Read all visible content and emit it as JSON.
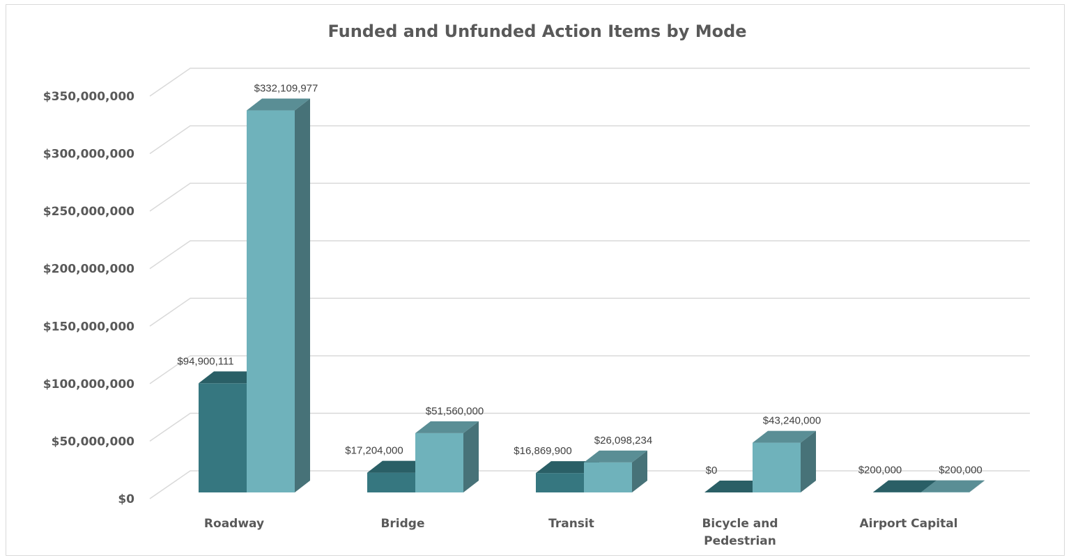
{
  "chart_data": {
    "type": "bar",
    "title": "Funded and Unfunded Action Items by Mode",
    "xlabel": "",
    "ylabel": "",
    "ylim": [
      0,
      350000000
    ],
    "y_ticks": [
      0,
      50000000,
      100000000,
      150000000,
      200000000,
      250000000,
      300000000,
      350000000
    ],
    "y_tick_labels": [
      "$0",
      "$50,000,000",
      "$100,000,000",
      "$150,000,000",
      "$200,000,000",
      "$250,000,000",
      "$300,000,000",
      "$350,000,000"
    ],
    "categories": [
      "Roadway",
      "Bridge",
      "Transit",
      "Bicycle and Pedestrian",
      "Airport Capital"
    ],
    "series": [
      {
        "values": [
          94900111,
          17204000,
          16869900,
          0,
          200000
        ],
        "labels": [
          "$94,900,111",
          "$17,204,000",
          "$16,869,900",
          "$0",
          "$200,000"
        ],
        "color": "#367780",
        "side_color": "#255d65",
        "top_color": "#2a5f66"
      },
      {
        "values": [
          332109977,
          51560000,
          26098234,
          43240000,
          200000
        ],
        "labels": [
          "$332,109,977",
          "$51,560,000",
          "$26,098,234",
          "$43,240,000",
          "$200,000"
        ],
        "color": "#6fb2bb",
        "side_color": "#477278",
        "top_color": "#5a8e95"
      }
    ],
    "grid": true,
    "legend": "none",
    "style": "3d-clustered-column"
  }
}
